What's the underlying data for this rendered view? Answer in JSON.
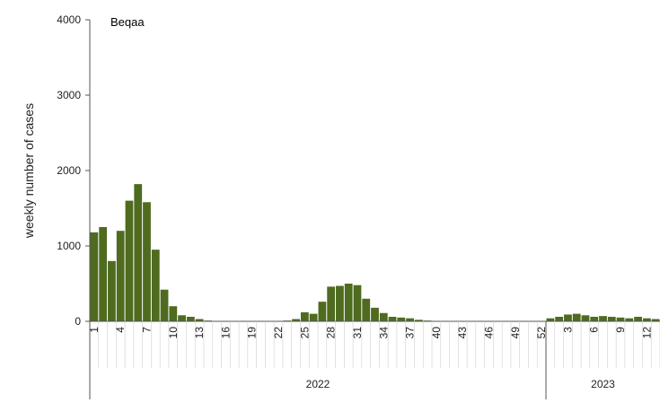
{
  "chart_data": {
    "type": "bar",
    "title": "Beqaa",
    "ylabel": "weekly number of cases",
    "ylim": [
      0,
      4000
    ],
    "y_ticks": [
      0,
      1000,
      2000,
      3000,
      4000
    ],
    "bar_color": "#4f6b1f",
    "x_tick_labels": [
      {
        "week": "1",
        "index": 0
      },
      {
        "week": "4",
        "index": 3
      },
      {
        "week": "7",
        "index": 6
      },
      {
        "week": "10",
        "index": 9
      },
      {
        "week": "13",
        "index": 12
      },
      {
        "week": "16",
        "index": 15
      },
      {
        "week": "19",
        "index": 18
      },
      {
        "week": "22",
        "index": 21
      },
      {
        "week": "25",
        "index": 24
      },
      {
        "week": "28",
        "index": 27
      },
      {
        "week": "31",
        "index": 30
      },
      {
        "week": "34",
        "index": 33
      },
      {
        "week": "37",
        "index": 36
      },
      {
        "week": "40",
        "index": 39
      },
      {
        "week": "43",
        "index": 42
      },
      {
        "week": "46",
        "index": 45
      },
      {
        "week": "49",
        "index": 48
      },
      {
        "week": "52",
        "index": 51
      },
      {
        "week": "3",
        "index": 54
      },
      {
        "week": "6",
        "index": 57
      },
      {
        "week": "9",
        "index": 60
      },
      {
        "week": "12",
        "index": 63
      }
    ],
    "year_groups": [
      {
        "label": "2022",
        "start": 0,
        "count": 52
      },
      {
        "label": "2023",
        "start": 52,
        "count": 13
      }
    ],
    "values": [
      1180,
      1250,
      800,
      1200,
      1600,
      1820,
      1580,
      950,
      420,
      200,
      80,
      60,
      30,
      10,
      0,
      0,
      0,
      0,
      0,
      0,
      0,
      0,
      10,
      30,
      120,
      100,
      260,
      460,
      470,
      500,
      480,
      300,
      180,
      110,
      60,
      50,
      40,
      20,
      10,
      0,
      0,
      0,
      0,
      0,
      0,
      0,
      0,
      0,
      0,
      0,
      0,
      0,
      40,
      60,
      90,
      100,
      80,
      60,
      70,
      60,
      50,
      40,
      60,
      40,
      30
    ]
  }
}
